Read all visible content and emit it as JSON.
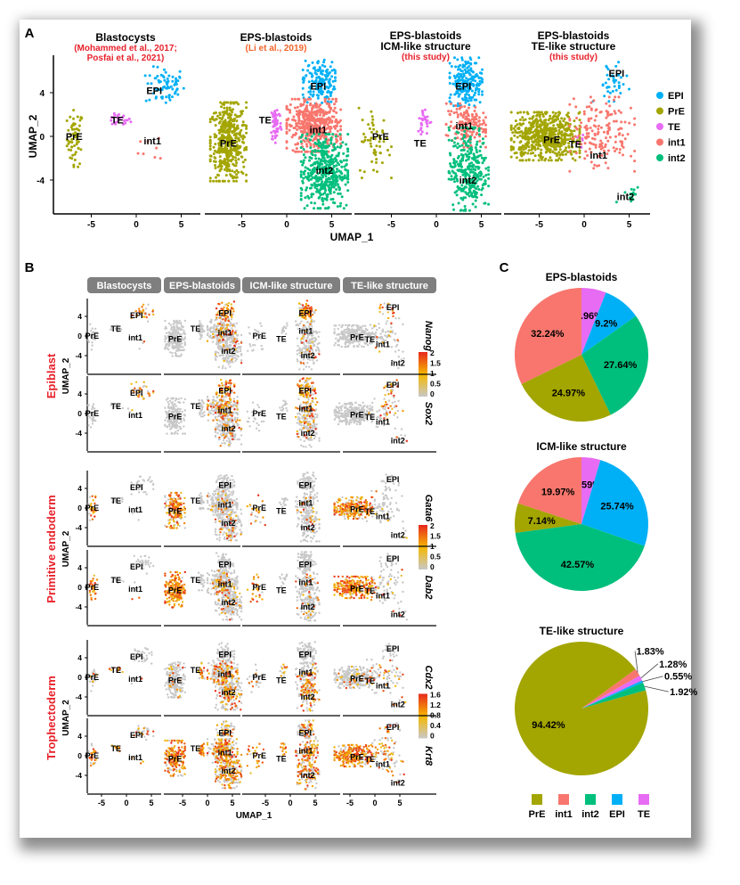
{
  "panel_labels": {
    "a": "A",
    "b": "B",
    "c": "C"
  },
  "colors": {
    "EPI": "#00b0f6",
    "PrE": "#a3a500",
    "TE": "#e76bf3",
    "int1": "#f8766d",
    "int2": "#00bf7d",
    "gray": "#c8c8c8",
    "red_text": "#e8212b",
    "orange_text": "#f0642a",
    "facet_bg": "#7f7f7f",
    "grad_low": "#c8c8c8",
    "grad_mid": "#f5b800",
    "grad_high": "#e8281e"
  },
  "chart_data": [
    {
      "type": "scatter",
      "panel": "A",
      "xlabel": "UMAP_1",
      "ylabel": "UMAP_2",
      "xticks": [
        -5,
        0,
        5
      ],
      "yticks": [
        4,
        0,
        -4
      ],
      "xlim": [
        -9.5,
        7
      ],
      "ylim": [
        -7,
        7.5
      ],
      "legend": {
        "position": "right",
        "entries": [
          "EPI",
          "PrE",
          "TE",
          "int1",
          "int2"
        ]
      },
      "datasets": [
        {
          "title": [
            "Blastocysts"
          ],
          "subtitle": [
            "(Mohammed et al., 2017;",
            "Posfai et al., 2021)"
          ],
          "subtitle_color": "red_text",
          "clusters": [
            {
              "name": "PrE",
              "center": [
                -6.8,
                -0.2
              ],
              "spread": [
                0.45,
                1.3
              ],
              "n": 60,
              "label": [
                -6.9,
                0
              ]
            },
            {
              "name": "TE",
              "center": [
                -2.0,
                1.5
              ],
              "spread": [
                0.7,
                0.3
              ],
              "n": 25,
              "label": [
                -2.1,
                1.5
              ]
            },
            {
              "name": "EPI",
              "center": [
                3.2,
                4.6
              ],
              "spread": [
                1.1,
                0.9
              ],
              "n": 70,
              "label": [
                2.0,
                4.2
              ]
            },
            {
              "name": "int1",
              "center": [
                2.2,
                -0.8
              ],
              "spread": [
                1.0,
                0.9
              ],
              "n": 8,
              "label": [
                1.8,
                -0.4
              ]
            }
          ]
        },
        {
          "title": [
            "EPS-blastoids"
          ],
          "subtitle": [
            "(Li et al., 2019)"
          ],
          "subtitle_color": "orange_text",
          "clusters": [
            {
              "name": "PrE",
              "center": [
                -6.5,
                -0.5
              ],
              "spread": [
                1.0,
                1.8
              ],
              "n": 450,
              "label": [
                -6.5,
                -0.6
              ]
            },
            {
              "name": "TE",
              "center": [
                -1.2,
                1.2
              ],
              "spread": [
                0.3,
                0.9
              ],
              "n": 60,
              "label": [
                -2.4,
                1.5
              ]
            },
            {
              "name": "EPI",
              "center": [
                3.6,
                5.0
              ],
              "spread": [
                0.9,
                1.0
              ],
              "n": 160,
              "label": [
                3.5,
                4.6
              ]
            },
            {
              "name": "int1",
              "center": [
                3.0,
                1.0
              ],
              "spread": [
                1.5,
                1.2
              ],
              "n": 480,
              "label": [
                3.5,
                0.6
              ]
            },
            {
              "name": "int2",
              "center": [
                4.2,
                -3.2
              ],
              "spread": [
                1.3,
                1.7
              ],
              "n": 450,
              "label": [
                4.2,
                -3.1
              ]
            }
          ]
        },
        {
          "title": [
            "EPS-blastoids",
            "ICM-like structure"
          ],
          "subtitle": [
            "(this study)"
          ],
          "subtitle_color": "red_text",
          "clusters": [
            {
              "name": "PrE",
              "center": [
                -6.8,
                -0.6
              ],
              "spread": [
                0.9,
                1.6
              ],
              "n": 55,
              "label": [
                -6.2,
                0
              ]
            },
            {
              "name": "TE",
              "center": [
                -1.3,
                1.4
              ],
              "spread": [
                0.4,
                0.6
              ],
              "n": 30,
              "label": [
                -1.8,
                -0.6
              ]
            },
            {
              "name": "EPI",
              "center": [
                3.3,
                5.0
              ],
              "spread": [
                0.9,
                1.1
              ],
              "n": 210,
              "label": [
                3.0,
                4.6
              ]
            },
            {
              "name": "int1",
              "center": [
                3.3,
                1.0
              ],
              "spread": [
                1.1,
                1.0
              ],
              "n": 160,
              "label": [
                3.1,
                1.0
              ]
            },
            {
              "name": "int2",
              "center": [
                3.6,
                -3.0
              ],
              "spread": [
                1.1,
                1.9
              ],
              "n": 320,
              "label": [
                3.5,
                -4.0
              ]
            }
          ]
        },
        {
          "title": [
            "EPS-blastoids",
            "TE-like structure"
          ],
          "subtitle": [
            "(this study)"
          ],
          "subtitle_color": "red_text",
          "clusters": [
            {
              "name": "PrE",
              "center": [
                -4.3,
                0.0
              ],
              "spread": [
                1.9,
                1.1
              ],
              "n": 600,
              "label": [
                -3.6,
                -0.3
              ]
            },
            {
              "name": "TE",
              "center": [
                -0.5,
                -0.4
              ],
              "spread": [
                0.4,
                0.3
              ],
              "n": 6,
              "label": [
                -1.0,
                -0.7
              ]
            },
            {
              "name": "EPI",
              "center": [
                3.0,
                5.0
              ],
              "spread": [
                1.0,
                0.9
              ],
              "n": 40,
              "label": [
                3.6,
                5.8
              ]
            },
            {
              "name": "int1",
              "center": [
                2.0,
                0.2
              ],
              "spread": [
                1.8,
                1.7
              ],
              "n": 160,
              "label": [
                1.6,
                -1.7
              ]
            },
            {
              "name": "int2",
              "center": [
                5.0,
                -5.2
              ],
              "spread": [
                0.7,
                0.7
              ],
              "n": 15,
              "label": [
                4.6,
                -5.5
              ]
            }
          ]
        }
      ]
    },
    {
      "type": "scatter",
      "panel": "B",
      "xlabel": "UMAP_1",
      "ylabel": "UMAP_2",
      "xticks": [
        -5,
        0,
        5
      ],
      "yticks": [
        4,
        0,
        -4
      ],
      "facets": [
        "Blastocysts",
        "EPS-blastoids",
        "ICM-like structure",
        "TE-like structure"
      ],
      "groups": [
        {
          "name": "Epiblast",
          "colorbar": [
            2.0,
            1.5,
            1.0,
            0.5,
            0.0
          ],
          "genes": [
            {
              "name": "Nanog",
              "expression": {
                "EPI": 0.7,
                "int1": 0.15,
                "int2": 0.08
              }
            },
            {
              "name": "Sox2",
              "expression": {
                "EPI": 0.75,
                "int1": 0.3,
                "int2": 0.2
              }
            }
          ]
        },
        {
          "name": "Primitive endoderm",
          "colorbar": [
            2.0,
            1.5,
            1.0,
            0.5,
            0.0
          ],
          "genes": [
            {
              "name": "Gata6",
              "expression": {
                "PrE": 0.7,
                "int1": 0.1,
                "int2": 0.1
              }
            },
            {
              "name": "Dab2",
              "expression": {
                "PrE": 0.95,
                "int1": 0.15,
                "int2": 0.15
              }
            }
          ]
        },
        {
          "name": "Trophectoderm",
          "colorbar": [
            1.6,
            1.2,
            0.8,
            0.4,
            0.0
          ],
          "genes": [
            {
              "name": "Cdx2",
              "expression": {
                "TE": 0.5,
                "int2": 0.45,
                "int1": 0.25,
                "PrE": 0.1
              }
            },
            {
              "name": "Krt8",
              "expression": {
                "TE": 0.9,
                "PrE": 0.8,
                "int1": 0.5,
                "int2": 0.5,
                "EPI": 0.3
              }
            }
          ]
        }
      ]
    },
    {
      "type": "pie",
      "panel": "C",
      "legend": {
        "position": "bottom",
        "entries": [
          "PrE",
          "int1",
          "int2",
          "EPI",
          "TE"
        ]
      },
      "pies": [
        {
          "title": "EPS-blastoids",
          "slices": [
            {
              "name": "TE",
              "value": 5.96,
              "label": "5.96%"
            },
            {
              "name": "EPI",
              "value": 9.2,
              "label": "9.2%"
            },
            {
              "name": "int2",
              "value": 27.64,
              "label": "27.64%"
            },
            {
              "name": "PrE",
              "value": 24.97,
              "label": "24.97%"
            },
            {
              "name": "int1",
              "value": 32.24,
              "label": "32.24%"
            }
          ]
        },
        {
          "title": "ICM-like structure",
          "slices": [
            {
              "name": "TE",
              "value": 4.59,
              "label": "4.59%"
            },
            {
              "name": "EPI",
              "value": 25.74,
              "label": "25.74%"
            },
            {
              "name": "int2",
              "value": 42.57,
              "label": "42.57%"
            },
            {
              "name": "PrE",
              "value": 7.14,
              "label": "7.14%"
            },
            {
              "name": "int1",
              "value": 19.97,
              "label": "19.97%"
            }
          ]
        },
        {
          "title": "TE-like structure",
          "slices": [
            {
              "name": "int1",
              "value": 1.83,
              "label": "1.83%"
            },
            {
              "name": "TE",
              "value": 1.28,
              "label": "1.28%"
            },
            {
              "name": "EPI",
              "value": 0.55,
              "label": "0.55%"
            },
            {
              "name": "int2",
              "value": 1.92,
              "label": "1.92%"
            },
            {
              "name": "PrE",
              "value": 94.42,
              "label": "94.42%"
            }
          ]
        }
      ]
    }
  ]
}
